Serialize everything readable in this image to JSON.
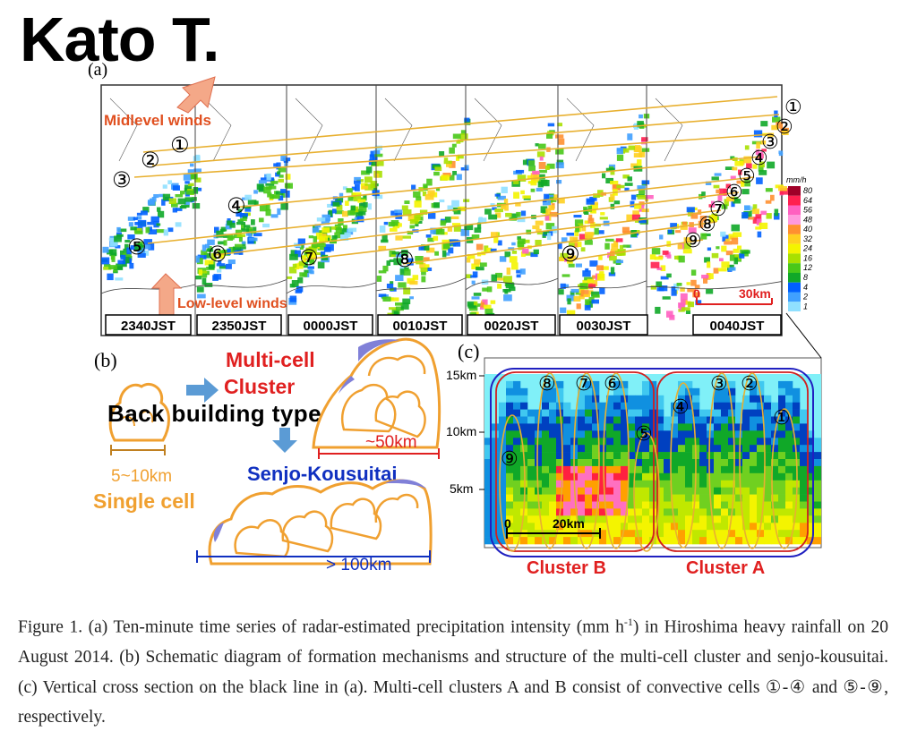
{
  "header": {
    "author": "Kato T."
  },
  "figure": {
    "panel_a": {
      "label": "(a)",
      "times": [
        "2340JST",
        "2350JST",
        "0000JST",
        "0010JST",
        "0020JST",
        "0030JST",
        "0040JST"
      ],
      "midlevel_label": "Midlevel winds",
      "lowlevel_label": "Low-level winds",
      "colorbar_unit": "mm/h",
      "colorbar_ticks": [
        "80",
        "64",
        "56",
        "48",
        "40",
        "32",
        "24",
        "16",
        "12",
        "8",
        "4",
        "2",
        "1"
      ],
      "colorbar_colors": [
        "#a00028",
        "#ff2050",
        "#ff60c0",
        "#ff99dd",
        "#ff9030",
        "#ffd020",
        "#f4f400",
        "#a8e000",
        "#48c818",
        "#10a828",
        "#0060ff",
        "#40a0ff",
        "#90e0ff"
      ],
      "scale_start": "0",
      "scale_end": "30km",
      "cells_first": [
        "①",
        "②",
        "③",
        "④",
        "⑤"
      ],
      "cell_6": "⑥",
      "cell_7": "⑦",
      "cell_8": "⑧",
      "cell_9": "⑨",
      "cells_last": [
        "①",
        "②",
        "③",
        "④",
        "⑤",
        "⑥",
        "⑦",
        "⑧",
        "⑨"
      ]
    },
    "panel_b": {
      "label": "(b)",
      "multicell_line1": "Multi-cell",
      "multicell_line2": "Cluster",
      "back_building": "Back building type formation",
      "size_single": "5~10km",
      "single_cell": "Single cell",
      "size_cluster": "~50km",
      "senjo": "Senjo-Kousuitai",
      "size_senjo": "> 100km"
    },
    "panel_c": {
      "label": "(c)",
      "y_ticks": [
        "15km",
        "10km",
        "5km"
      ],
      "x_ticks": [
        "0",
        "20km"
      ],
      "cluster_a": "Cluster A",
      "cluster_b": "Cluster B",
      "cells_b": [
        "⑧",
        "⑦",
        "⑥",
        "⑤",
        "⑨"
      ],
      "cells_a": [
        "④",
        "③",
        "②",
        "①"
      ]
    }
  },
  "caption": {
    "text": "Figure 1. (a) Ten-minute time series of radar-estimated precipitation intensity (mm h",
    "sup": "-1",
    "text2": ") in Hiroshima heavy rainfall on 20 August 2014. (b) Schematic diagram of formation mechanisms and structure of the multi-cell cluster and senjo-kousuitai. (c) Vertical cross section on the black line in (a). Multi-cell clusters A and B consist of convective cells ①-④ and ⑤-⑨, respectively."
  }
}
